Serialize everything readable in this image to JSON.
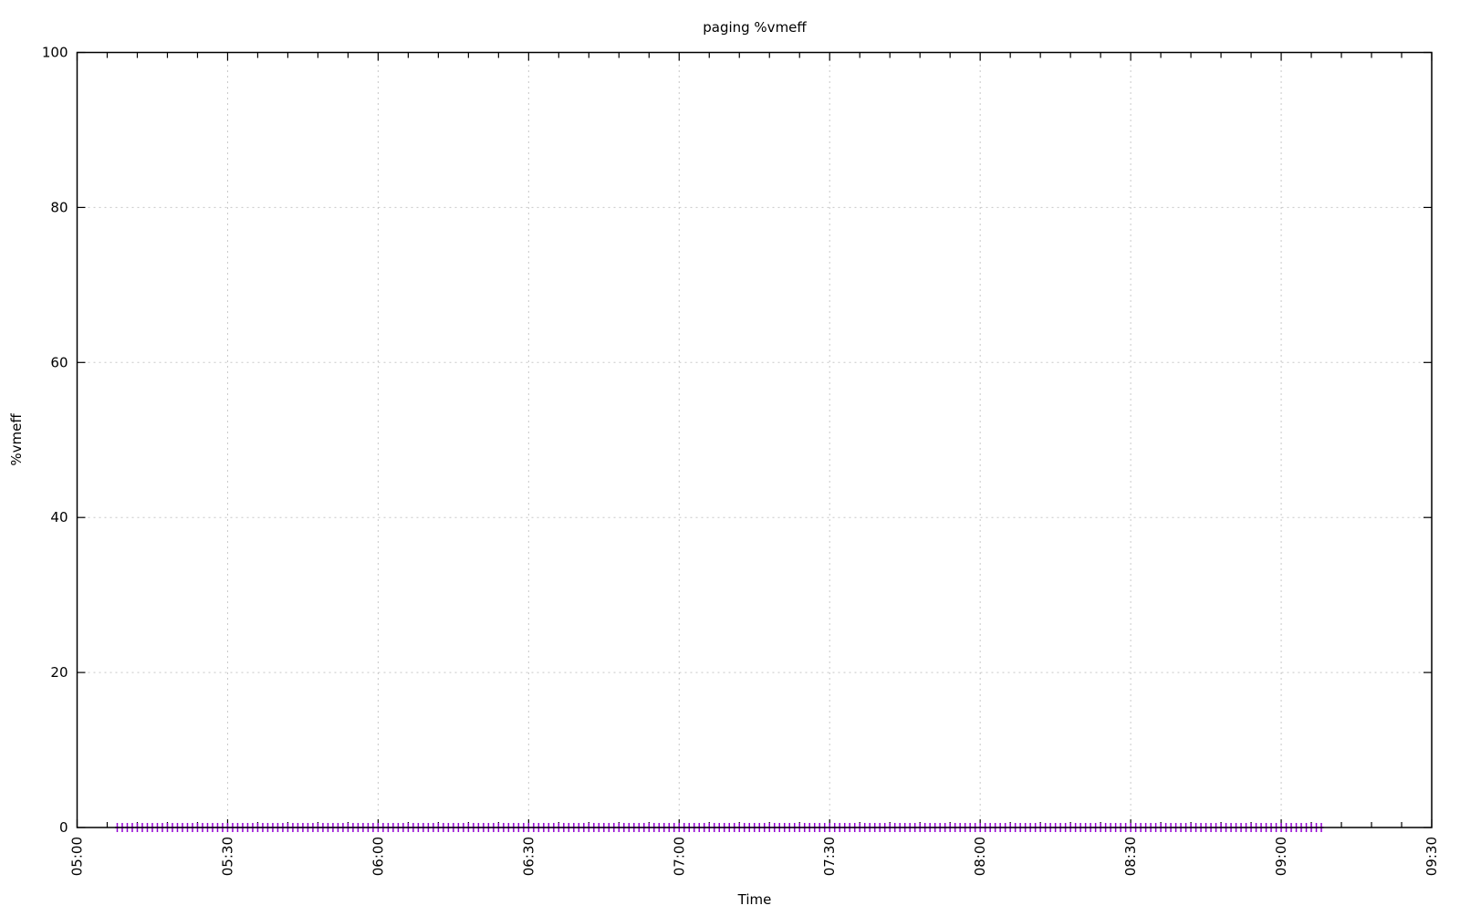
{
  "chart_data": {
    "type": "scatter",
    "title": "paging  %vmeff",
    "xlabel": "Time",
    "ylabel": "%vmeff",
    "xlim": [
      "05:00",
      "09:30"
    ],
    "ylim": [
      0,
      100
    ],
    "x_ticks": [
      "05:00",
      "05:30",
      "06:00",
      "06:30",
      "07:00",
      "07:30",
      "08:00",
      "08:30",
      "09:00",
      "09:30"
    ],
    "y_ticks": [
      "0",
      "20",
      "40",
      "60",
      "80",
      "100"
    ],
    "grid": true,
    "legend": "none",
    "series": [
      {
        "color": "#9400d3",
        "marker": "plus",
        "x_start": "05:08",
        "x_end": "09:08",
        "x_step_minutes": 1,
        "y_value_all_points": 0
      }
    ]
  }
}
